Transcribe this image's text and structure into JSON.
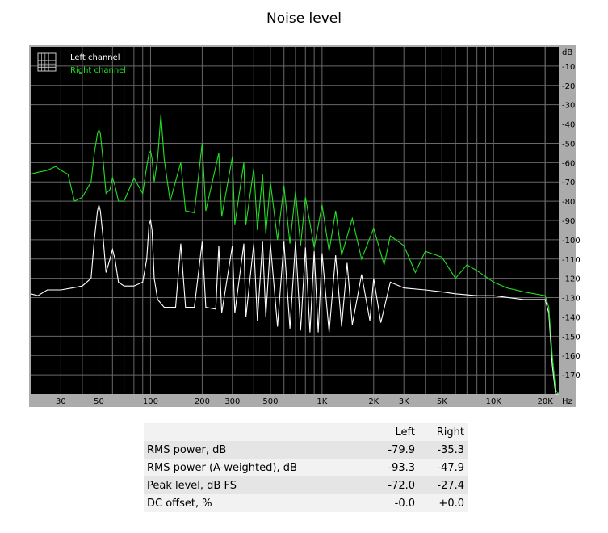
{
  "chart_data": {
    "type": "line",
    "title": "Noise level",
    "x_scale": "log",
    "xlim": [
      20,
      24000
    ],
    "ylim": [
      -180,
      0
    ],
    "y_unit": "dB",
    "x_unit": "Hz",
    "grid": true,
    "legend_placement": "top-left",
    "x_ticks": [
      {
        "value": 30,
        "label": "30"
      },
      {
        "value": 50,
        "label": "50"
      },
      {
        "value": 100,
        "label": "100"
      },
      {
        "value": 200,
        "label": "200"
      },
      {
        "value": 300,
        "label": "300"
      },
      {
        "value": 500,
        "label": "500"
      },
      {
        "value": 1000,
        "label": "1K"
      },
      {
        "value": 2000,
        "label": "2K"
      },
      {
        "value": 3000,
        "label": "3K"
      },
      {
        "value": 5000,
        "label": "5K"
      },
      {
        "value": 10000,
        "label": "10K"
      },
      {
        "value": 20000,
        "label": "20K"
      }
    ],
    "y_ticks": [
      -10,
      -20,
      -30,
      -40,
      -50,
      -60,
      -70,
      -80,
      -90,
      -100,
      -110,
      -120,
      -130,
      -140,
      -150,
      -160,
      -170
    ],
    "series": [
      {
        "name": "Left channel",
        "color": "#ffffff",
        "points": [
          [
            20,
            -128
          ],
          [
            22,
            -129
          ],
          [
            25,
            -126
          ],
          [
            30,
            -126
          ],
          [
            35,
            -125
          ],
          [
            40,
            -124
          ],
          [
            45,
            -120
          ],
          [
            47,
            -100
          ],
          [
            49,
            -85
          ],
          [
            50,
            -82
          ],
          [
            51,
            -85
          ],
          [
            53,
            -100
          ],
          [
            55,
            -117
          ],
          [
            58,
            -110
          ],
          [
            60,
            -105
          ],
          [
            62,
            -110
          ],
          [
            65,
            -122
          ],
          [
            70,
            -124
          ],
          [
            80,
            -124
          ],
          [
            90,
            -122
          ],
          [
            95,
            -110
          ],
          [
            98,
            -92
          ],
          [
            100,
            -90
          ],
          [
            102,
            -95
          ],
          [
            105,
            -120
          ],
          [
            110,
            -131
          ],
          [
            120,
            -135
          ],
          [
            140,
            -135
          ],
          [
            150,
            -102
          ],
          [
            160,
            -135
          ],
          [
            180,
            -135
          ],
          [
            200,
            -101
          ],
          [
            210,
            -135
          ],
          [
            240,
            -136
          ],
          [
            250,
            -103
          ],
          [
            260,
            -138
          ],
          [
            300,
            -103
          ],
          [
            310,
            -138
          ],
          [
            350,
            -102
          ],
          [
            360,
            -140
          ],
          [
            400,
            -102
          ],
          [
            420,
            -142
          ],
          [
            450,
            -101
          ],
          [
            470,
            -140
          ],
          [
            500,
            -102
          ],
          [
            550,
            -145
          ],
          [
            600,
            -101
          ],
          [
            650,
            -146
          ],
          [
            700,
            -101
          ],
          [
            750,
            -147
          ],
          [
            800,
            -104
          ],
          [
            850,
            -148
          ],
          [
            900,
            -106
          ],
          [
            950,
            -148
          ],
          [
            1000,
            -107
          ],
          [
            1100,
            -148
          ],
          [
            1200,
            -108
          ],
          [
            1300,
            -145
          ],
          [
            1400,
            -112
          ],
          [
            1500,
            -144
          ],
          [
            1700,
            -118
          ],
          [
            1900,
            -142
          ],
          [
            2000,
            -120
          ],
          [
            2200,
            -143
          ],
          [
            2500,
            -122
          ],
          [
            3000,
            -125
          ],
          [
            4000,
            -126
          ],
          [
            5000,
            -127
          ],
          [
            6000,
            -128
          ],
          [
            8000,
            -129
          ],
          [
            10000,
            -129
          ],
          [
            15000,
            -131
          ],
          [
            20000,
            -131
          ],
          [
            21000,
            -138
          ],
          [
            22000,
            -165
          ],
          [
            23000,
            -180
          ],
          [
            24000,
            -180
          ]
        ]
      },
      {
        "name": "Right channel",
        "color": "#22e022",
        "points": [
          [
            20,
            -66
          ],
          [
            22,
            -65
          ],
          [
            25,
            -64
          ],
          [
            28,
            -62
          ],
          [
            30,
            -64
          ],
          [
            33,
            -66
          ],
          [
            36,
            -80
          ],
          [
            40,
            -78
          ],
          [
            45,
            -70
          ],
          [
            47,
            -55
          ],
          [
            49,
            -45
          ],
          [
            50,
            -43
          ],
          [
            51,
            -45
          ],
          [
            53,
            -60
          ],
          [
            55,
            -76
          ],
          [
            58,
            -74
          ],
          [
            60,
            -68
          ],
          [
            62,
            -72
          ],
          [
            65,
            -80
          ],
          [
            70,
            -80
          ],
          [
            80,
            -68
          ],
          [
            90,
            -76
          ],
          [
            95,
            -62
          ],
          [
            98,
            -55
          ],
          [
            100,
            -54
          ],
          [
            102,
            -58
          ],
          [
            105,
            -70
          ],
          [
            110,
            -58
          ],
          [
            115,
            -35
          ],
          [
            120,
            -58
          ],
          [
            130,
            -80
          ],
          [
            150,
            -60
          ],
          [
            160,
            -85
          ],
          [
            180,
            -86
          ],
          [
            200,
            -50
          ],
          [
            210,
            -85
          ],
          [
            250,
            -55
          ],
          [
            260,
            -88
          ],
          [
            300,
            -57
          ],
          [
            310,
            -92
          ],
          [
            350,
            -60
          ],
          [
            360,
            -92
          ],
          [
            400,
            -63
          ],
          [
            420,
            -95
          ],
          [
            450,
            -66
          ],
          [
            470,
            -97
          ],
          [
            500,
            -70
          ],
          [
            550,
            -100
          ],
          [
            600,
            -72
          ],
          [
            650,
            -102
          ],
          [
            700,
            -75
          ],
          [
            750,
            -103
          ],
          [
            800,
            -78
          ],
          [
            900,
            -104
          ],
          [
            1000,
            -82
          ],
          [
            1100,
            -106
          ],
          [
            1200,
            -85
          ],
          [
            1300,
            -108
          ],
          [
            1500,
            -89
          ],
          [
            1700,
            -110
          ],
          [
            2000,
            -94
          ],
          [
            2300,
            -113
          ],
          [
            2500,
            -98
          ],
          [
            3000,
            -103
          ],
          [
            3500,
            -117
          ],
          [
            4000,
            -106
          ],
          [
            5000,
            -109
          ],
          [
            6000,
            -120
          ],
          [
            7000,
            -113
          ],
          [
            8000,
            -116
          ],
          [
            10000,
            -122
          ],
          [
            12000,
            -125
          ],
          [
            15000,
            -127
          ],
          [
            20000,
            -129
          ],
          [
            21000,
            -135
          ],
          [
            22000,
            -160
          ],
          [
            23000,
            -178
          ],
          [
            24000,
            -180
          ]
        ]
      }
    ]
  },
  "table": {
    "columns": [
      "",
      "Left",
      "Right"
    ],
    "rows": [
      {
        "label": "RMS power, dB",
        "left": "-79.9",
        "right": "-35.3"
      },
      {
        "label": "RMS power (A-weighted), dB",
        "left": "-93.3",
        "right": "-47.9"
      },
      {
        "label": "Peak level, dB FS",
        "left": "-72.0",
        "right": "-27.4"
      },
      {
        "label": "DC offset, %",
        "left": "-0.0",
        "right": "+0.0"
      }
    ]
  }
}
